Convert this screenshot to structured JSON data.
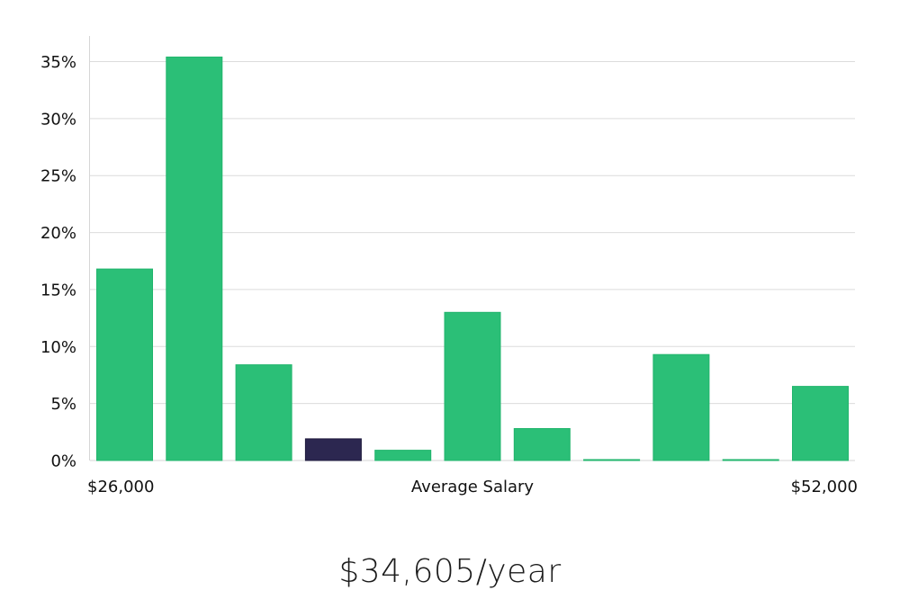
{
  "chart_data": {
    "type": "bar",
    "title": "",
    "ylabel": "",
    "xlabel": "Average Salary",
    "x_start_label": "$26,000",
    "x_end_label": "$52,000",
    "y_tick_labels": [
      "0%",
      "5%",
      "10%",
      "15%",
      "20%",
      "25%",
      "30%",
      "35%"
    ],
    "ylim": [
      0,
      37
    ],
    "grid": true,
    "values": [
      16.8,
      35.4,
      8.4,
      1.9,
      0.9,
      13.0,
      2.8,
      0.05,
      9.3,
      0.05,
      6.5
    ],
    "highlight_index": 3,
    "colors": {
      "bar": "#2bbf77",
      "bar_stroke": "#21b56c",
      "highlight": "#2c2750",
      "grid": "#dcdcdc",
      "axis": "#d6d6d6"
    }
  },
  "summary": {
    "salary_text": "$34,605/year"
  }
}
